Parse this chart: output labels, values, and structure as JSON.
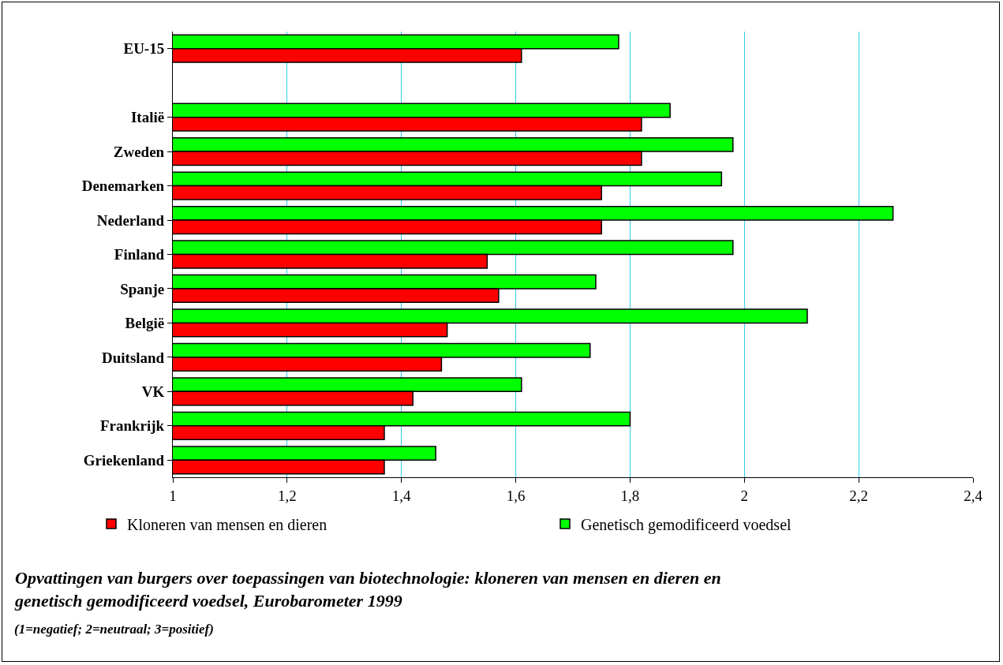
{
  "chart_data": {
    "type": "bar",
    "orientation": "horizontal",
    "title": "Opvattingen van burgers over toepassingen van biotechnologie: kloneren van mensen en dieren en genetisch gemodificeerd voedsel, Eurobarometer 1999",
    "subtitle": "(1=negatief; 2=neutraal; 3=positief)",
    "categories": [
      "EU-15",
      null,
      "Italië",
      "Zweden",
      "Denemarken",
      "Nederland",
      "Finland",
      "Spanje",
      "België",
      "Duitsland",
      "VK",
      "Frankrijk",
      "Griekenland"
    ],
    "series": [
      {
        "name": "Kloneren van mensen en dieren",
        "color": "#ff0000",
        "values": [
          1.61,
          null,
          1.82,
          1.82,
          1.75,
          1.75,
          1.55,
          1.57,
          1.48,
          1.47,
          1.42,
          1.37,
          1.37
        ]
      },
      {
        "name": "Genetisch gemodificeerd voedsel",
        "color": "#00ff00",
        "values": [
          1.78,
          null,
          1.87,
          1.98,
          1.96,
          2.26,
          1.98,
          1.74,
          2.11,
          1.73,
          1.61,
          1.8,
          1.46
        ]
      }
    ],
    "xlim": [
      1,
      2.4
    ],
    "xticks": [
      1,
      {
        "value": 1.2,
        "label": "1,2"
      },
      {
        "value": 1.4,
        "label": "1,4"
      },
      {
        "value": 1.6,
        "label": "1,6"
      },
      {
        "value": 1.8,
        "label": "1,8"
      },
      2,
      {
        "value": 2.2,
        "label": "2,2"
      },
      {
        "value": 2.4,
        "label": "2,4"
      }
    ],
    "grid": "x",
    "legend": "bottom"
  }
}
